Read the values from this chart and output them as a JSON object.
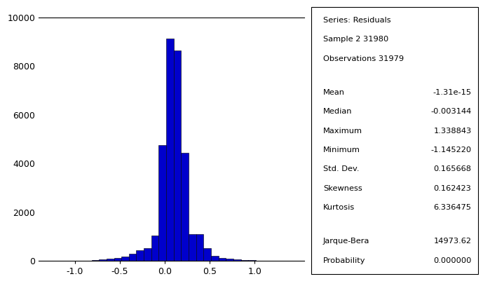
{
  "series_label": "Series: Residuals",
  "sample_label": "Sample 2 31980",
  "obs_label": "Observations 31979",
  "stats": {
    "Mean": "-1.31e-15",
    "Median": "-0.003144",
    "Maximum": "1.338843",
    "Minimum": "-1.145220",
    "Std. Dev.": "0.165668",
    "Skewness": "0.162423",
    "Kurtosis": "6.336475"
  },
  "jarque_bera": "14973.62",
  "probability": "0.000000",
  "bar_color": "#0000CC",
  "bar_edgecolor": "#000000",
  "ylim": [
    0,
    10000
  ],
  "xlim": [
    -1.4,
    1.55
  ],
  "yticks": [
    0,
    2000,
    4000,
    6000,
    8000,
    10000
  ],
  "xticks": [
    -1.0,
    -0.5,
    0.0,
    0.5,
    1.0
  ],
  "bin_width": 0.083,
  "bar_heights": [
    2,
    3,
    5,
    8,
    30,
    50,
    100,
    130,
    170,
    280,
    430,
    520,
    1050,
    4750,
    9150,
    8650,
    4450,
    1100,
    1100,
    520,
    200,
    130,
    80,
    50,
    30,
    15,
    8,
    4,
    2,
    1
  ],
  "bin_lefts": [
    -1.145,
    -1.062,
    -0.979,
    -0.896,
    -0.813,
    -0.73,
    -0.647,
    -0.564,
    -0.481,
    -0.398,
    -0.315,
    -0.232,
    -0.149,
    -0.066,
    0.017,
    0.1,
    0.183,
    0.266,
    0.349,
    0.432,
    0.515,
    0.598,
    0.681,
    0.764,
    0.847,
    0.93,
    1.013,
    1.096,
    1.179,
    1.262
  ]
}
